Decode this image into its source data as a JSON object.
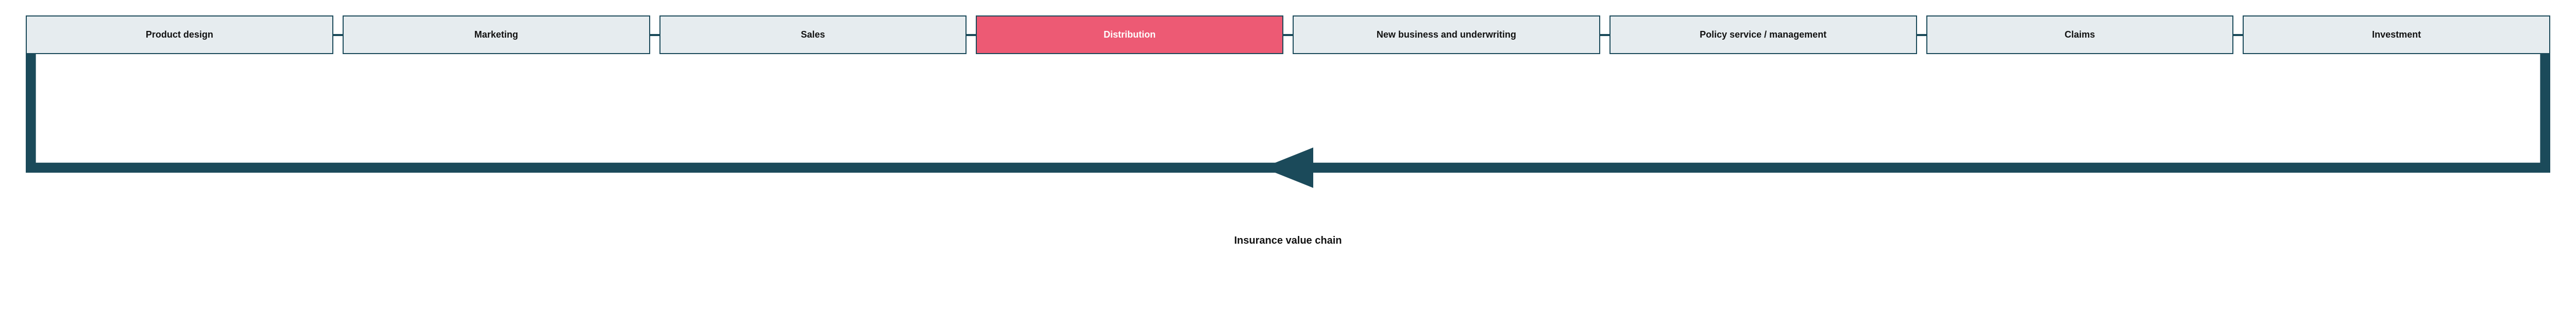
{
  "diagram": {
    "type": "flowchart",
    "title": "Insurance value chain",
    "title_fontsize": 20,
    "title_fontweight": 700,
    "colors": {
      "box_fill_default": "#e6ecef",
      "box_fill_highlight": "#ed5a74",
      "box_border": "#1b4a5a",
      "box_text_default": "#111111",
      "box_text_highlight": "#ffffff",
      "connector": "#1b4a5a",
      "feedback_arrow": "#1b4a5a",
      "caption_text": "#111111",
      "background": "#ffffff"
    },
    "box_border_width": 2,
    "box_fontsize": 18,
    "box_fontweight": 700,
    "connector_thickness": 4,
    "feedback_arrow_thickness": 4,
    "nodes": [
      {
        "label": "Product design",
        "highlighted": false
      },
      {
        "label": "Marketing",
        "highlighted": false
      },
      {
        "label": "Sales",
        "highlighted": false
      },
      {
        "label": "Distribution",
        "highlighted": true
      },
      {
        "label": "New business and underwriting",
        "highlighted": false
      },
      {
        "label": "Policy service / management",
        "highlighted": false
      },
      {
        "label": "Claims",
        "highlighted": false
      },
      {
        "label": "Investment",
        "highlighted": false
      }
    ]
  }
}
